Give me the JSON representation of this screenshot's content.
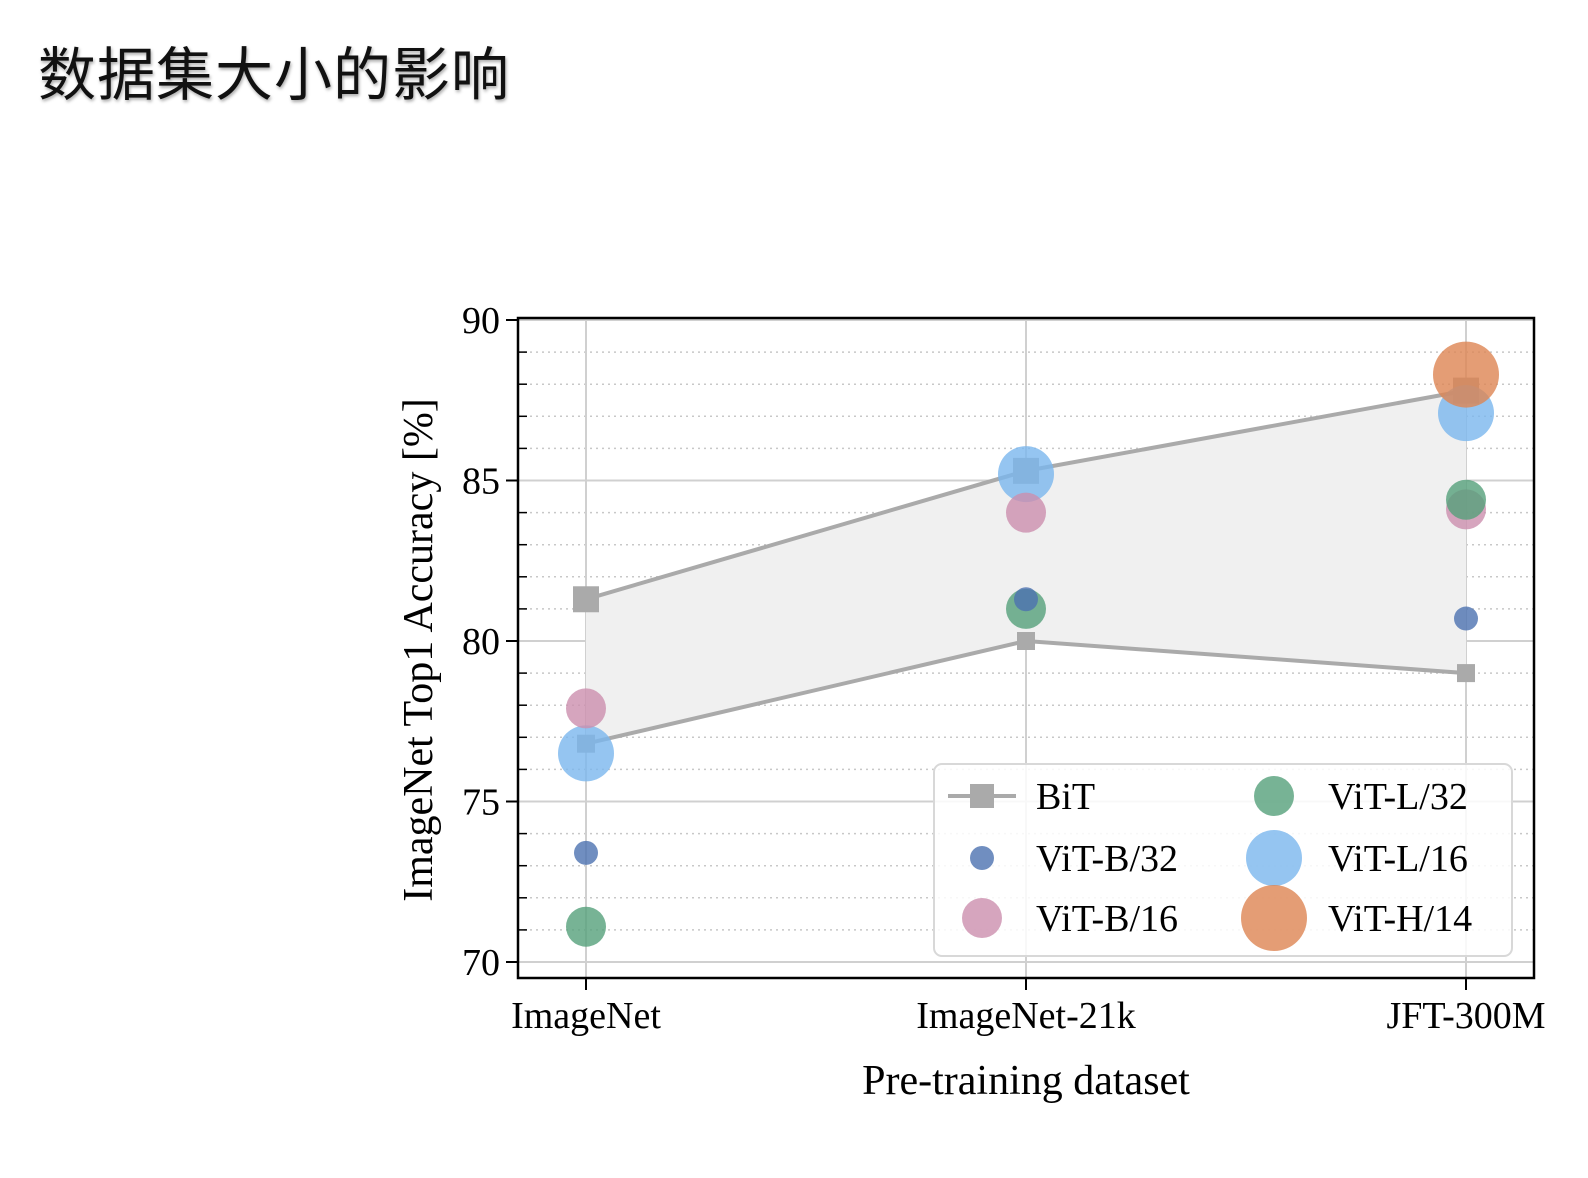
{
  "slide": {
    "title": "数据集大小的影响"
  },
  "colors": {
    "bit": "#aaaaaa",
    "band": "#f0f0f0",
    "vit_b32": "#4c72b0",
    "vit_b16": "#cc8fae",
    "vit_l32": "#55a07a",
    "vit_l16": "#7ab6ee",
    "vit_h14": "#dd8452"
  },
  "chart_data": {
    "type": "scatter",
    "categories": [
      "ImageNet",
      "ImageNet-21k",
      "JFT-300M"
    ],
    "xlabel": "Pre-training dataset",
    "ylabel": "ImageNet Top1 Accuracy [%]",
    "ylim": [
      70,
      90
    ],
    "yticks": [
      "70",
      "75",
      "80",
      "85",
      "90"
    ],
    "grid": true,
    "legend_position": "lower-right",
    "band": {
      "name": "BiT",
      "upper": [
        81.3,
        85.3,
        87.8
      ],
      "lower": [
        76.8,
        80.0,
        79.0
      ]
    },
    "series": [
      {
        "name": "ViT-B/32",
        "values": [
          73.4,
          81.3,
          80.7
        ],
        "size": "small"
      },
      {
        "name": "ViT-B/16",
        "values": [
          77.9,
          84.0,
          84.1
        ],
        "size": "medium"
      },
      {
        "name": "ViT-L/32",
        "values": [
          71.1,
          81.0,
          84.4
        ],
        "size": "medium"
      },
      {
        "name": "ViT-L/16",
        "values": [
          76.5,
          85.2,
          87.1
        ],
        "size": "large"
      },
      {
        "name": "ViT-H/14",
        "values": [
          null,
          null,
          88.3
        ],
        "size": "xlarge"
      }
    ]
  }
}
